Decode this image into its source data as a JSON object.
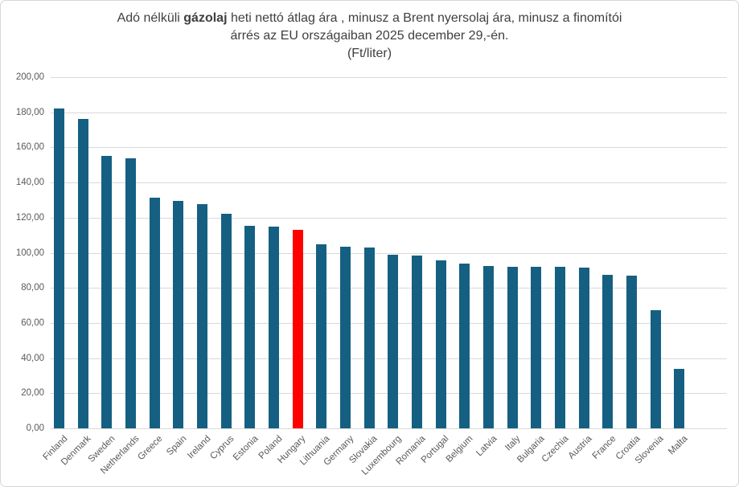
{
  "title": {
    "line1_prefix": "Adó nélküli ",
    "line1_bold": "gázolaj",
    "line1_suffix": " heti nettó  átlag ára , minusz a Brent nyersolaj ára, minusz a finomítói",
    "line2": "árrés az EU országaiban 2025 december 29,-én.",
    "line3": "(Ft/liter)"
  },
  "colors": {
    "bar": "#156082",
    "highlight": "#ff0000",
    "grid": "#d9d9d9",
    "tick_text": "#595959",
    "title_text": "#3f3f3f"
  },
  "chart_data": {
    "type": "bar",
    "title": "Adó nélküli gázolaj heti nettó átlag ára , minusz a Brent nyersolaj ára, minusz a finomítói árrés az EU országaiban 2025 december 29,-én.",
    "subtitle": "(Ft/liter)",
    "categories": [
      "Finland",
      "Denmark",
      "Sweden",
      "Netherlands",
      "Greece",
      "Spain",
      "Ireland",
      "Cyprus",
      "Estonia",
      "Poland",
      "Hungary",
      "Lithuania",
      "Germany",
      "Slovakia",
      "Luxembourg",
      "Romania",
      "Portugal",
      "Belgium",
      "Latvia",
      "Italy",
      "Bulgaria",
      "Czechia",
      "Austria",
      "France",
      "Croatia",
      "Slovenia",
      "Malta"
    ],
    "values": [
      182,
      176,
      155,
      154,
      131.5,
      129.5,
      127.5,
      122,
      115.5,
      115,
      113,
      105,
      103.5,
      103,
      99,
      98.5,
      95.5,
      94,
      92.5,
      92,
      92,
      92,
      91.5,
      87.5,
      87,
      67.5,
      34
    ],
    "highlight_category": "Hungary",
    "bar_color": "#156082",
    "highlight_color": "#ff0000",
    "xlabel": "",
    "ylabel": "",
    "ylim": [
      0,
      200
    ],
    "ytick_values": [
      0,
      20,
      40,
      60,
      80,
      100,
      120,
      140,
      160,
      180,
      200
    ],
    "ytick_labels": [
      "0,00",
      "20,00",
      "40,00",
      "60,00",
      "80,00",
      "100,00",
      "120,00",
      "140,00",
      "160,00",
      "180,00",
      "200,00"
    ],
    "grid": true,
    "legend_position": "none"
  }
}
